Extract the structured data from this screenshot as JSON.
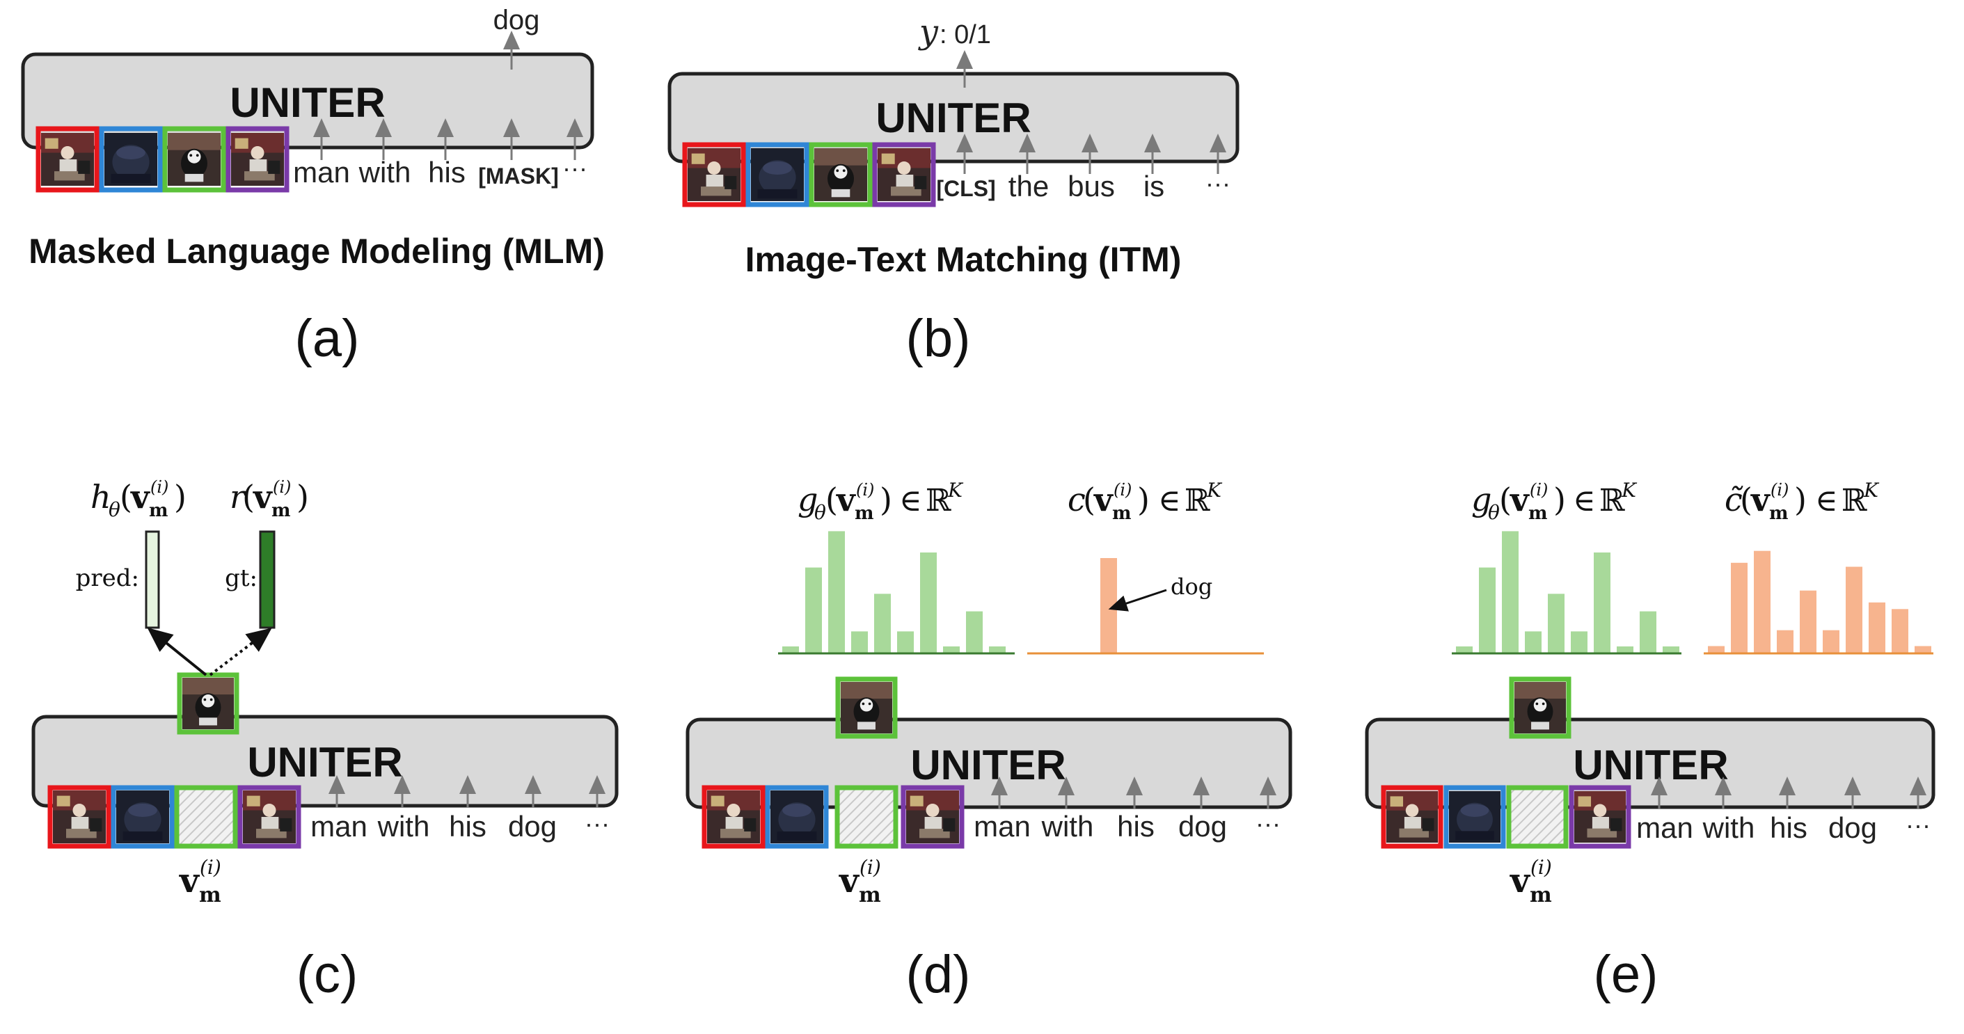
{
  "panels": [
    {
      "id": "a",
      "model": "UNITER",
      "tokens": [
        "man",
        "with",
        "his",
        "[MASK]",
        "···"
      ],
      "output": "dog",
      "caption": "Masked Language Modeling (MLM)",
      "label": "(a)"
    },
    {
      "id": "b",
      "model": "UNITER",
      "tokens": [
        "[CLS]",
        "the",
        "bus",
        "is",
        "···"
      ],
      "output_symbol": "y",
      "output": ": 0/1",
      "caption": "Image-Text Matching (ITM)",
      "label": "(b)"
    },
    {
      "id": "c",
      "model": "UNITER",
      "tokens": [
        "man",
        "with",
        "his",
        "dog",
        "···"
      ],
      "masked_region": "v_m^(i)",
      "pred_label": "pred:",
      "gt_label": "gt:",
      "pred_formula": "hθ(v_m^(i))",
      "gt_formula": "r(v_m^(i))",
      "label": "(c)"
    },
    {
      "id": "d",
      "model": "UNITER",
      "tokens": [
        "man",
        "with",
        "his",
        "dog",
        "···"
      ],
      "masked_region": "v_m^(i)",
      "pred_formula": "gθ(v_m^(i)) ∈ ℝ^K",
      "target_formula": "c(v_m^(i)) ∈ ℝ^K",
      "annotation": "dog",
      "label": "(d)"
    },
    {
      "id": "e",
      "model": "UNITER",
      "tokens": [
        "man",
        "with",
        "his",
        "dog",
        "···"
      ],
      "masked_region": "v_m^(i)",
      "pred_formula": "gθ(v_m^(i)) ∈ ℝ^K",
      "target_formula": "c̃(v_m^(i)) ∈ ℝ^K",
      "label": "(e)"
    }
  ],
  "colors": {
    "region_1": "#e8161b",
    "region_2": "#2f86d6",
    "region_3": "#5cc23a",
    "region_4": "#7a3aa8",
    "model_fill": "#d9d9d9",
    "pred_bar": "#a8d99a",
    "target_bar": "#f7b48e",
    "gt_bar": "#2e7d28",
    "pred_vector": "#e6f4df"
  },
  "distributions": {
    "pred": [
      0.05,
      0.68,
      0.97,
      0.17,
      0.47,
      0.17,
      0.8,
      0.05,
      0.33,
      0.05
    ],
    "target_d": [
      0,
      0,
      0,
      1,
      0,
      0,
      0,
      0,
      0,
      0
    ],
    "target_e": [
      0.05,
      0.68,
      0.77,
      0.17,
      0.47,
      0.17,
      0.65,
      0.38,
      0.33,
      0.05
    ]
  }
}
